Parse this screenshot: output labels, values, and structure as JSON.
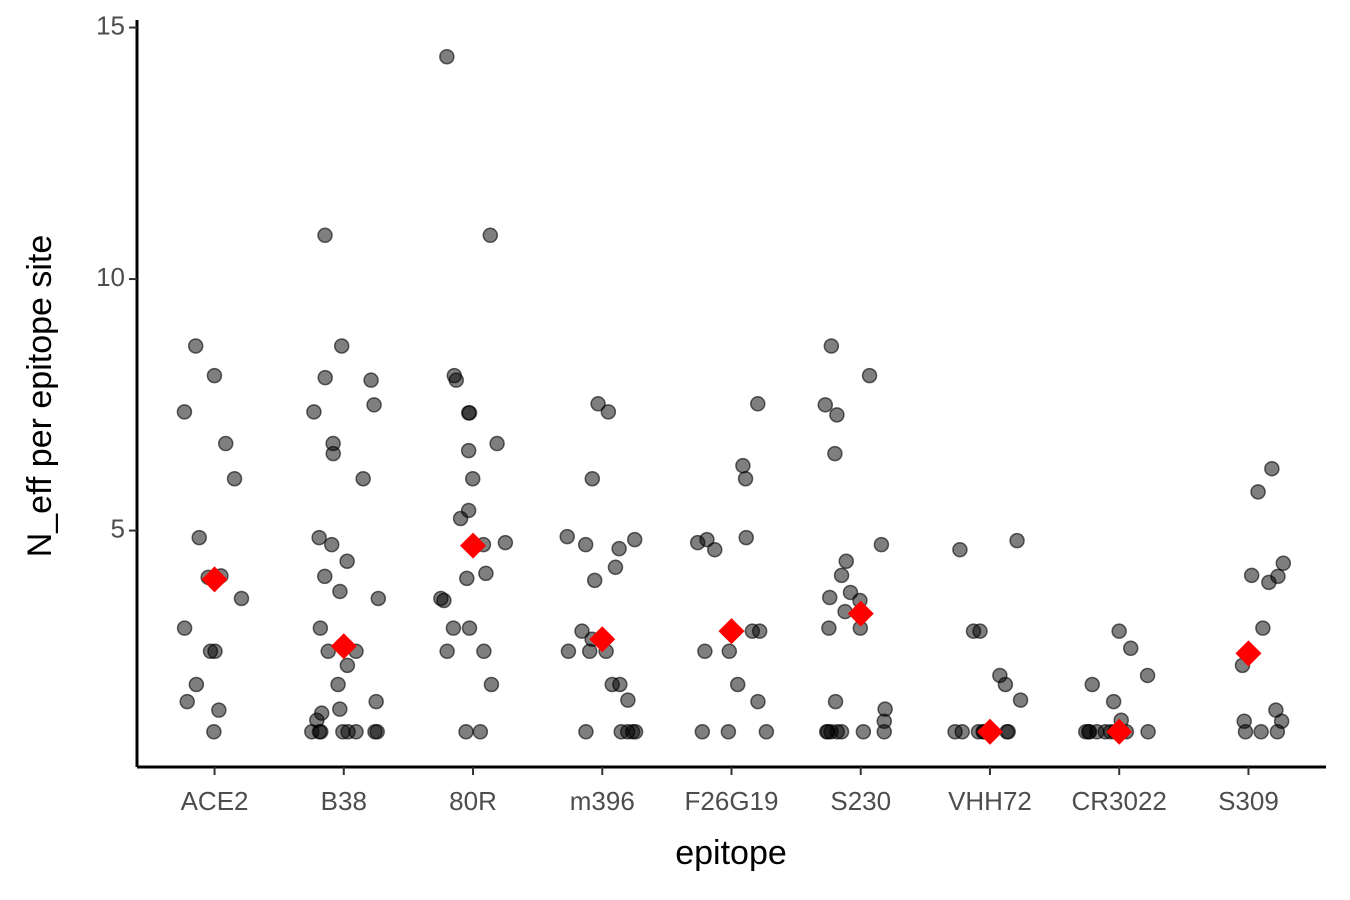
{
  "chart_data": {
    "type": "strip",
    "x_label": "epitope",
    "y_label": "N_eff per epitope site",
    "categories": [
      "ACE2",
      "B38",
      "80R",
      "m396",
      "F26G19",
      "S230",
      "VHH72",
      "CR3022",
      "S309"
    ],
    "values": [
      [
        1,
        1.43,
        1.6,
        1.94,
        2.6,
        2.6,
        3.06,
        3.65,
        4.1,
        4.07,
        4.86,
        6.03,
        6.73,
        7.36,
        8.08,
        8.67
      ],
      [
        1,
        1,
        1,
        1,
        1,
        1,
        1,
        1,
        1.23,
        1.45,
        1.6,
        1.37,
        1.94,
        2.32,
        2.6,
        2.6,
        3.06,
        3.65,
        3.79,
        4.09,
        4.39,
        4.72,
        4.86,
        6.03,
        6.53,
        6.73,
        7.36,
        7.5,
        8.04,
        7.99,
        8.67,
        10.87
      ],
      [
        1,
        1,
        1.94,
        2.6,
        2.6,
        3.06,
        3.06,
        3.61,
        3.65,
        4.05,
        4.15,
        4.72,
        4.76,
        5.24,
        5.4,
        6.03,
        6.59,
        6.73,
        7.34,
        7.34,
        7.99,
        8.08,
        10.87,
        14.42
      ],
      [
        1,
        1,
        1,
        1,
        1,
        1.63,
        1.94,
        1.94,
        2.6,
        2.6,
        2.6,
        2.84,
        3.0,
        4.01,
        4.27,
        4.64,
        4.72,
        4.82,
        4.88,
        6.03,
        7.36,
        7.52
      ],
      [
        1,
        1,
        1,
        1.6,
        1.94,
        2.6,
        2.6,
        3.0,
        3.0,
        4.62,
        4.76,
        4.82,
        4.86,
        6.03,
        6.29,
        7.52
      ],
      [
        1,
        1,
        1,
        1,
        1,
        1,
        1,
        1.21,
        1.45,
        1.6,
        3.06,
        3.06,
        3.39,
        3.61,
        3.67,
        3.77,
        4.11,
        4.39,
        4.72,
        6.53,
        7.3,
        7.5,
        8.08,
        8.67
      ],
      [
        1,
        1,
        1,
        1,
        1,
        1,
        1,
        1,
        1,
        1.63,
        1.94,
        2.12,
        3.0,
        3.0,
        4.62,
        4.8
      ],
      [
        1,
        1,
        1,
        1,
        1,
        1,
        1,
        1,
        1,
        1,
        1.23,
        1.6,
        1.94,
        2.12,
        2.66,
        3.0
      ],
      [
        1,
        1,
        1,
        1.21,
        1.43,
        2.32,
        2.56,
        3.06,
        3.97,
        4.09,
        4.11,
        4.35,
        5.77,
        6.23,
        1.21
      ]
    ],
    "means": [
      4.03,
      2.7,
      4.7,
      2.84,
      3.0,
      3.35,
      1,
      1,
      2.56
    ],
    "point_color": "#000000",
    "mean_color": "#ff0000",
    "ylim": [
      0.3,
      15.15
    ],
    "yticks": [
      5,
      10,
      15
    ]
  }
}
